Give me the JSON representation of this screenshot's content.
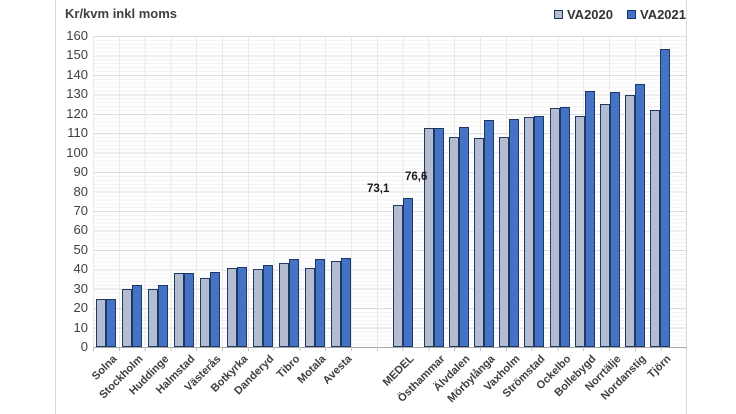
{
  "title": "Kr/kvm inkl moms",
  "legend": {
    "items": [
      {
        "label": "VA2020",
        "color": "#b3bcd0"
      },
      {
        "label": "VA2021",
        "color": "#4472c4"
      }
    ]
  },
  "colors": {
    "va2020_fill": "#b3bcd0",
    "va2021_fill": "#4472c4",
    "bar_border": "#1f3864",
    "gridline_major": "#dcdcdc",
    "text": "#404040"
  },
  "chart_data": {
    "type": "bar",
    "title": "Kr/kvm inkl moms",
    "ylabel": "Kr/kvm inkl moms",
    "ylim": [
      0,
      160
    ],
    "ytick_step": 10,
    "grid": "on",
    "legend_position": "top-right",
    "series_names": [
      "VA2020",
      "VA2021"
    ],
    "groups": [
      {
        "name": "municipalities-low",
        "categories": [
          "Solna",
          "Stockholm",
          "Huddinge",
          "Halmstad",
          "Västerås",
          "Botkyrka",
          "Danderyd",
          "Tibro",
          "Motala",
          "Avesta"
        ],
        "series": [
          {
            "name": "VA2020",
            "values": [
              24.5,
              30,
              30,
              38,
              35.5,
              40.5,
              40,
              43,
              40.5,
              44
            ]
          },
          {
            "name": "VA2021",
            "values": [
              24.5,
              32,
              32,
              38,
              38.5,
              41,
              42,
              45.5,
              45.5,
              46
            ]
          }
        ]
      },
      {
        "name": "average",
        "categories": [
          "MEDEL"
        ],
        "series": [
          {
            "name": "VA2020",
            "values": [
              73.1
            ]
          },
          {
            "name": "VA2021",
            "values": [
              76.6
            ]
          }
        ],
        "data_labels": [
          "73,1",
          "76,6"
        ]
      },
      {
        "name": "municipalities-high",
        "categories": [
          "Östhammar",
          "Älvdalen",
          "Mörbylånga",
          "Vaxholm",
          "Strömstad",
          "Ockelbo",
          "Bollebygd",
          "Norrtälje",
          "Nordanstig",
          "Tjörn"
        ],
        "series": [
          {
            "name": "VA2020",
            "values": [
              112.5,
              108,
              107.5,
              108,
              118.5,
              123,
              119,
              125,
              129.5,
              122
            ]
          },
          {
            "name": "VA2021",
            "values": [
              112.5,
              113,
              117,
              117.5,
              119,
              123.5,
              131.5,
              131,
              135.5,
              153.5
            ]
          }
        ]
      }
    ]
  }
}
